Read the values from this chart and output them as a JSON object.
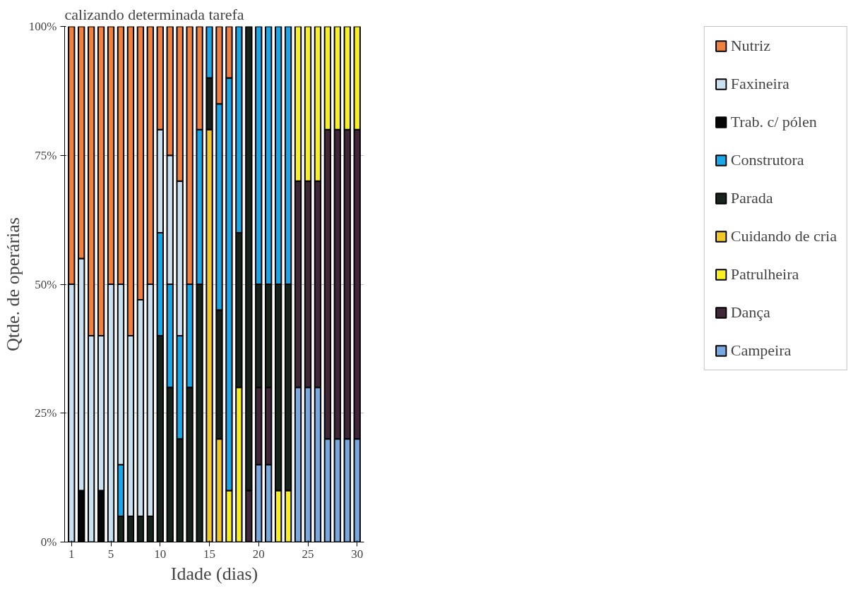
{
  "chart_data": {
    "type": "bar",
    "stacked": true,
    "title": "calizando determinada tarefa",
    "xlabel": "Idade (dias)",
    "ylabel": "Qtde. de operárias",
    "x": [
      1,
      2,
      3,
      4,
      5,
      6,
      7,
      8,
      9,
      10,
      11,
      12,
      13,
      14,
      15,
      16,
      17,
      18,
      19,
      20,
      21,
      22,
      23,
      24,
      25,
      26,
      27,
      28,
      29,
      30
    ],
    "xlim": [
      0.3,
      30.7
    ],
    "xticks": [
      1,
      5,
      10,
      15,
      20,
      25,
      30
    ],
    "ylim": [
      0,
      100
    ],
    "yticks": [
      {
        "value": 0,
        "label": "0%"
      },
      {
        "value": 25,
        "label": "25%"
      },
      {
        "value": 50,
        "label": "50%"
      },
      {
        "value": 75,
        "label": "75%"
      },
      {
        "value": 100,
        "label": "100%"
      }
    ],
    "grid": "y",
    "legend": "right",
    "series": [
      {
        "name": "Campeira",
        "color": "#78a8e0",
        "values": [
          null,
          null,
          null,
          null,
          null,
          null,
          null,
          null,
          null,
          null,
          null,
          null,
          null,
          null,
          null,
          null,
          null,
          null,
          null,
          15,
          15,
          null,
          null,
          30,
          30,
          30,
          20,
          20,
          20,
          20
        ]
      },
      {
        "name": "Dança",
        "color": "#402838",
        "values": [
          null,
          null,
          null,
          null,
          null,
          null,
          null,
          null,
          null,
          null,
          null,
          null,
          null,
          null,
          null,
          null,
          null,
          null,
          10,
          15,
          15,
          null,
          null,
          40,
          40,
          40,
          60,
          60,
          60,
          60
        ]
      },
      {
        "name": "Patrulheira",
        "color": "#f8f020",
        "values": [
          null,
          null,
          null,
          null,
          null,
          null,
          null,
          null,
          null,
          null,
          null,
          null,
          null,
          null,
          null,
          null,
          10,
          30,
          null,
          null,
          null,
          10,
          10,
          30,
          30,
          30,
          20,
          20,
          20,
          20
        ]
      },
      {
        "name": "Cuidando de cria",
        "color": "#f0c828",
        "values": [
          null,
          null,
          null,
          null,
          null,
          null,
          null,
          null,
          null,
          null,
          null,
          null,
          null,
          null,
          80,
          20,
          null,
          null,
          null,
          null,
          null,
          null,
          null,
          null,
          null,
          null,
          null,
          null,
          null,
          null
        ]
      },
      {
        "name": "Parada",
        "color": "#16241c",
        "values": [
          null,
          null,
          null,
          null,
          null,
          5,
          5,
          5,
          5,
          40,
          30,
          20,
          30,
          50,
          10,
          25,
          null,
          30,
          90,
          20,
          20,
          40,
          40,
          null,
          null,
          null,
          null,
          null,
          null,
          null
        ]
      },
      {
        "name": "Construtora",
        "color": "#18a8e8",
        "values": [
          null,
          null,
          null,
          null,
          null,
          10,
          null,
          null,
          null,
          20,
          20,
          20,
          20,
          30,
          10,
          40,
          80,
          40,
          null,
          50,
          50,
          50,
          50,
          null,
          null,
          null,
          null,
          null,
          null,
          null
        ]
      },
      {
        "name": "Trab. c/ pólen",
        "color": "#050505",
        "values": [
          null,
          10,
          null,
          10,
          null,
          null,
          null,
          null,
          null,
          null,
          null,
          null,
          null,
          null,
          null,
          null,
          null,
          null,
          null,
          null,
          null,
          null,
          null,
          null,
          null,
          null,
          null,
          null,
          null,
          null
        ]
      },
      {
        "name": "Faxineira",
        "color": "#c8e0f0",
        "values": [
          50,
          45,
          40,
          30,
          50,
          35,
          35,
          42,
          45,
          20,
          25,
          30,
          null,
          null,
          null,
          null,
          null,
          null,
          null,
          null,
          null,
          null,
          null,
          null,
          null,
          null,
          null,
          null,
          null,
          null
        ]
      },
      {
        "name": "Nutriz",
        "color": "#f08040",
        "values": [
          50,
          45,
          60,
          60,
          50,
          50,
          60,
          53,
          50,
          20,
          25,
          30,
          50,
          20,
          null,
          15,
          10,
          null,
          null,
          null,
          null,
          null,
          null,
          null,
          null,
          null,
          null,
          null,
          null,
          null
        ]
      }
    ]
  }
}
